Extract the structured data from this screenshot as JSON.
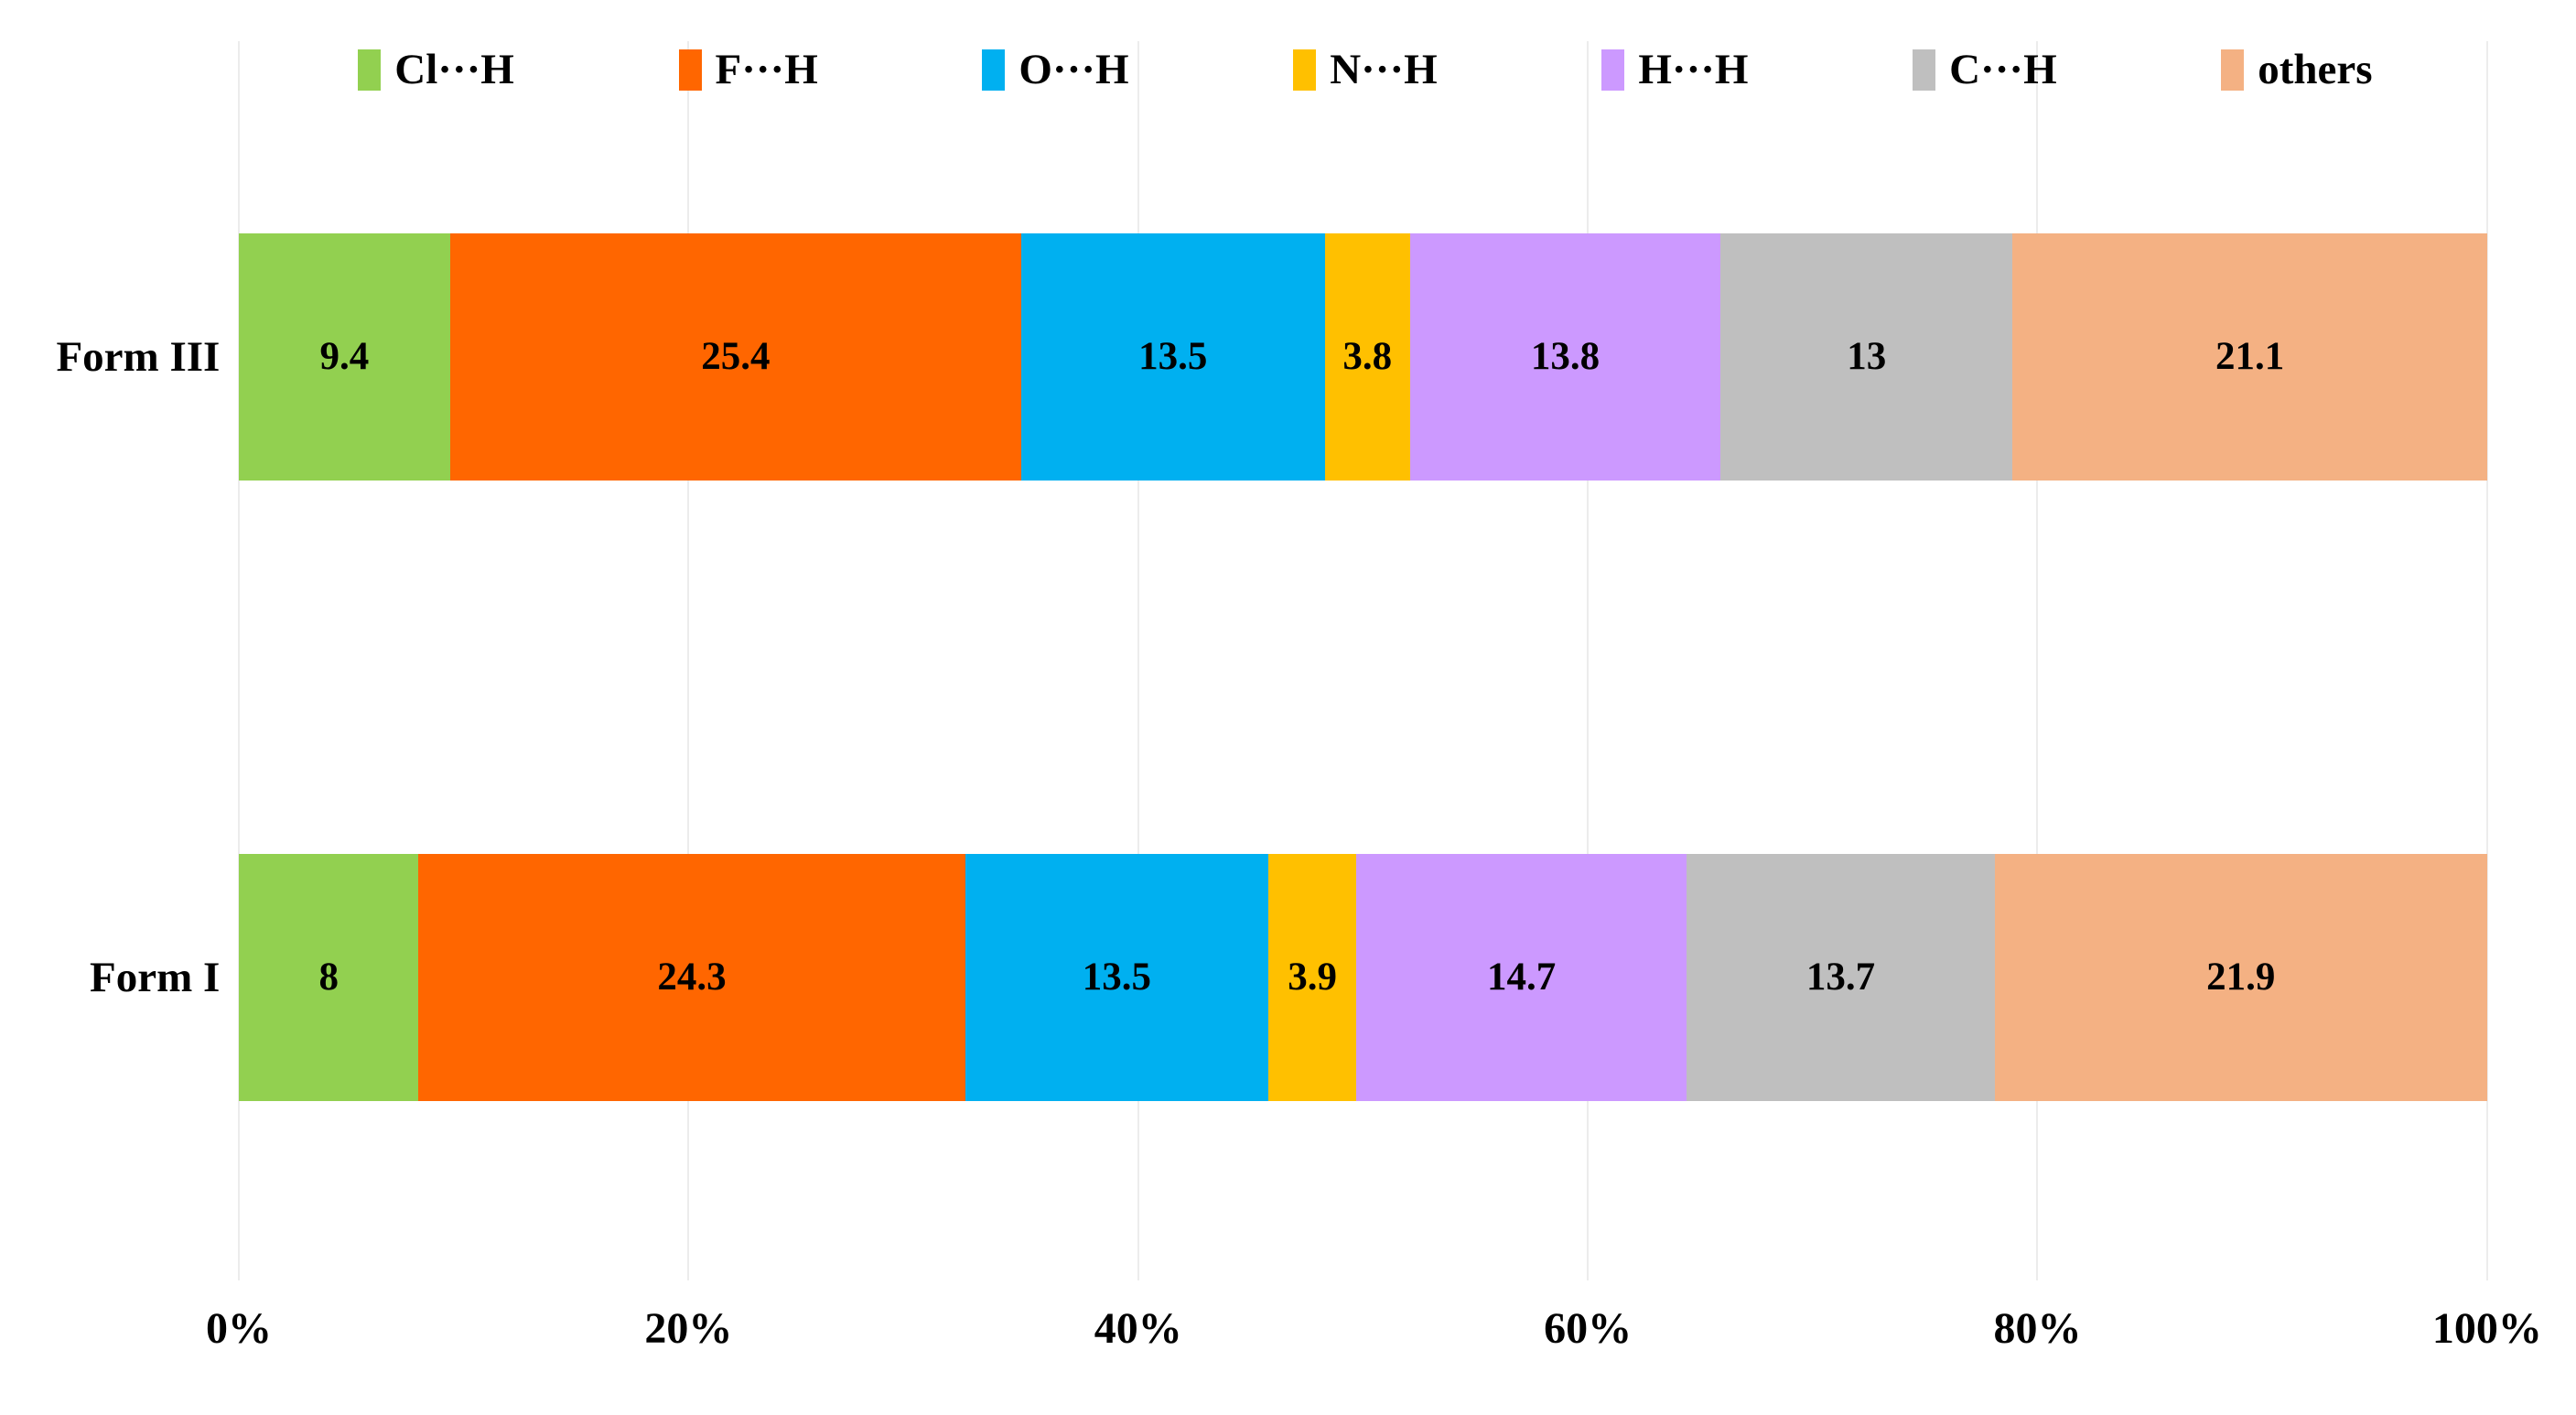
{
  "chart_data": {
    "type": "bar",
    "subtype": "horizontal-100pct-stacked",
    "title": "",
    "categories": [
      "Form III",
      "Form I"
    ],
    "series": [
      {
        "name": "Cl···H",
        "color": "#92D050",
        "values": [
          9.4,
          8
        ],
        "labels": [
          "9.4",
          "8"
        ]
      },
      {
        "name": "F···H",
        "color": "#FF6600",
        "values": [
          25.4,
          24.3
        ],
        "labels": [
          "25.4",
          "24.3"
        ]
      },
      {
        "name": "O···H",
        "color": "#00B0F0",
        "values": [
          13.5,
          13.5
        ],
        "labels": [
          "13.5",
          "13.5"
        ]
      },
      {
        "name": "N···H",
        "color": "#FFC000",
        "values": [
          3.8,
          3.9
        ],
        "labels": [
          "3.8",
          "3.9"
        ]
      },
      {
        "name": "H···H",
        "color": "#CC99FF",
        "values": [
          13.8,
          14.7
        ],
        "labels": [
          "13.8",
          "14.7"
        ]
      },
      {
        "name": "C···H",
        "color": "#BFBFBF",
        "values": [
          13,
          13.7
        ],
        "labels": [
          "13",
          "13.7"
        ]
      },
      {
        "name": "others",
        "color": "#F4B183",
        "values": [
          21.1,
          21.9
        ],
        "labels": [
          "21.1",
          "21.9"
        ]
      }
    ],
    "x_ticks": [
      "0%",
      "20%",
      "40%",
      "60%",
      "80%",
      "100%"
    ],
    "xlim": [
      0,
      100
    ],
    "legend_position": "top",
    "grid": true,
    "gridline_color": "#ececec",
    "value_label_color": "#000000"
  }
}
